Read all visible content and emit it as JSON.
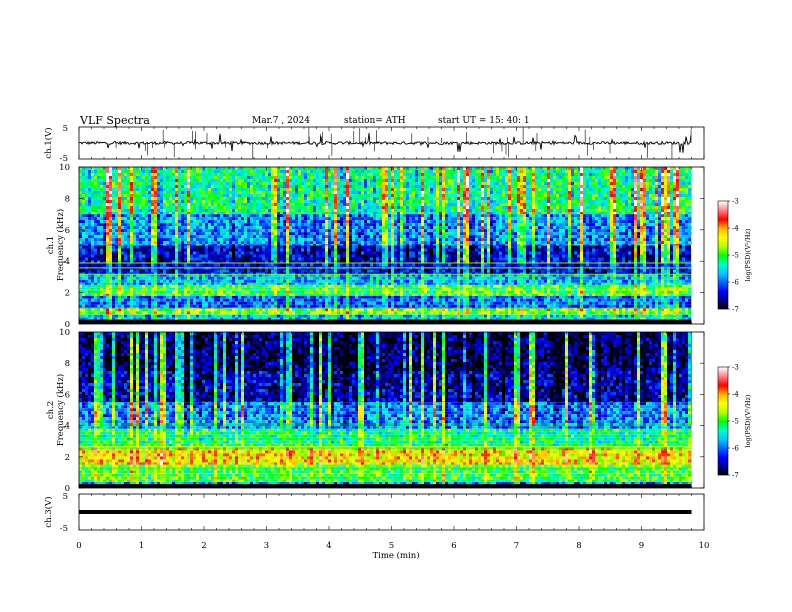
{
  "header": {
    "title": "VLF  Spectra",
    "date": "Mar.7  , 2024",
    "station": "station= ATH",
    "start": "start  UT  =    15: 40: 1"
  },
  "colors": {
    "colormap": [
      "#000000",
      "#00008c",
      "#0000ff",
      "#0064ff",
      "#00c8ff",
      "#00ffc8",
      "#00ff00",
      "#b4ff00",
      "#ffff00",
      "#ffb400",
      "#ff0000",
      "#ff8080",
      "#ffffff"
    ]
  },
  "chart_data": [
    {
      "type": "line",
      "name": "ch1-waveform",
      "ylabel": "ch.1(V)",
      "ylim": [
        -5,
        5
      ],
      "yticks": [
        5,
        -5
      ],
      "xlim": [
        0,
        10
      ],
      "baseline": 0,
      "data_extent_min": 9.8,
      "description_of_signal": "noisy trace near 0 V with sferic spikes"
    },
    {
      "type": "heatmap",
      "name": "ch1-spectrogram",
      "ylabel": "ch.1\nFrequency  (kHz)",
      "ylim": [
        0,
        10
      ],
      "yticks": [
        "0",
        "2",
        "4",
        "6",
        "8",
        "10"
      ],
      "xlim": [
        0,
        10
      ],
      "data_extent_min": 9.8,
      "bands": [
        {
          "f": [
            0.0,
            0.3
          ],
          "level": 0.02
        },
        {
          "f": [
            0.3,
            0.6
          ],
          "level": 0.35
        },
        {
          "f": [
            0.6,
            1.0
          ],
          "level": 0.55
        },
        {
          "f": [
            1.0,
            1.8
          ],
          "level": 0.25
        },
        {
          "f": [
            1.8,
            2.5
          ],
          "level": 0.5
        },
        {
          "f": [
            2.5,
            3.2
          ],
          "level": 0.32
        },
        {
          "f": [
            3.2,
            5.0
          ],
          "level": 0.15
        },
        {
          "f": [
            5.0,
            7.0
          ],
          "level": 0.3
        },
        {
          "f": [
            7.0,
            10.0
          ],
          "level": 0.45
        }
      ],
      "colorbar": {
        "label": "log(PSD)(V²/Hz)",
        "range": [
          -7,
          -3
        ],
        "ticks": [
          "-3",
          "-4",
          "-5",
          "-6",
          "-7"
        ]
      }
    },
    {
      "type": "heatmap",
      "name": "ch2-spectrogram",
      "ylabel": "ch.2\nFrequency  (kHz)",
      "ylim": [
        0,
        10
      ],
      "yticks": [
        "0",
        "2",
        "4",
        "6",
        "8",
        "10"
      ],
      "xlim": [
        0,
        10
      ],
      "data_extent_min": 9.8,
      "bands": [
        {
          "f": [
            0.0,
            0.4
          ],
          "level": 0.3
        },
        {
          "f": [
            0.4,
            1.5
          ],
          "level": 0.5
        },
        {
          "f": [
            1.5,
            2.6
          ],
          "level": 0.68
        },
        {
          "f": [
            2.6,
            3.8
          ],
          "level": 0.45
        },
        {
          "f": [
            3.8,
            5.5
          ],
          "level": 0.28
        },
        {
          "f": [
            5.5,
            7.5
          ],
          "level": 0.12
        },
        {
          "f": [
            7.5,
            10.0
          ],
          "level": 0.06
        }
      ],
      "colorbar": {
        "label": "log(PSD)(V²/Hz)",
        "range": [
          -7,
          -3
        ],
        "ticks": [
          "-3",
          "-4",
          "-5",
          "-6",
          "-7"
        ]
      }
    },
    {
      "type": "line",
      "name": "ch3-waveform",
      "ylabel": "ch.3(V)",
      "ylim": [
        -5,
        5
      ],
      "yticks": [
        "5",
        "-5"
      ],
      "xlim": [
        0,
        10
      ],
      "baseline": 0,
      "data_extent_min": 9.8
    }
  ],
  "xaxis": {
    "label": "Time  (min)",
    "ticks": [
      "0",
      "1",
      "2",
      "3",
      "4",
      "5",
      "6",
      "7",
      "8",
      "9",
      "10"
    ]
  }
}
